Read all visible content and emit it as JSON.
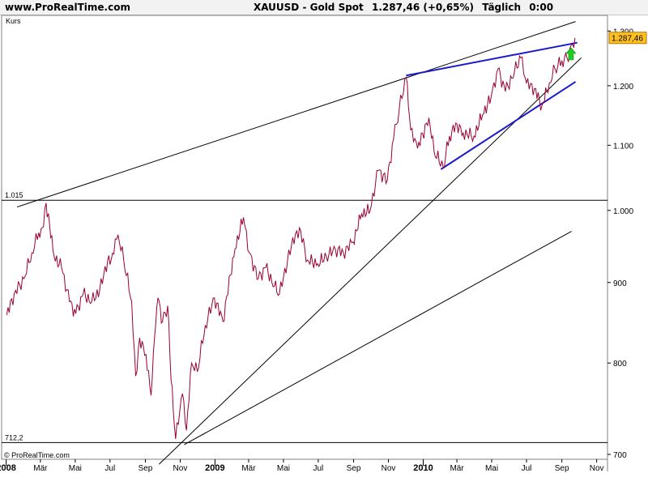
{
  "header": {
    "site": "www.ProRealTime.com",
    "instrument": "XAUUSD - Gold Spot",
    "quote": "1.287,46 (+0,65%)",
    "period": "Täglich",
    "time": "0:00"
  },
  "chart_data": {
    "type": "line",
    "title": "XAUUSD - Gold Spot",
    "ylabel": "Kurs",
    "xlabel": "",
    "y_scale": "log",
    "ylim": [
      695,
      1330
    ],
    "xlim": [
      "2007-12-24",
      "2010-11-20"
    ],
    "grid": false,
    "price_label": "1.287,46",
    "credit": "© ProRealTime.com",
    "y_ticks": [
      {
        "value": 700,
        "label": "700"
      },
      {
        "value": 800,
        "label": "800"
      },
      {
        "value": 900,
        "label": "900"
      },
      {
        "value": 1000,
        "label": "1.000"
      },
      {
        "value": 1100,
        "label": "1.100"
      },
      {
        "value": 1200,
        "label": "1.200"
      },
      {
        "value": 1300,
        "label": "1.300"
      }
    ],
    "x_ticks": [
      {
        "date": "2008-01-01",
        "label": "2008",
        "major": true
      },
      {
        "date": "2008-03-01",
        "label": "Mär",
        "major": false
      },
      {
        "date": "2008-05-01",
        "label": "Mai",
        "major": false
      },
      {
        "date": "2008-07-01",
        "label": "Jul",
        "major": false
      },
      {
        "date": "2008-09-01",
        "label": "Sep",
        "major": false
      },
      {
        "date": "2008-11-01",
        "label": "Nov",
        "major": false
      },
      {
        "date": "2009-01-01",
        "label": "2009",
        "major": true
      },
      {
        "date": "2009-03-01",
        "label": "Mär",
        "major": false
      },
      {
        "date": "2009-05-01",
        "label": "Mai",
        "major": false
      },
      {
        "date": "2009-07-01",
        "label": "Jul",
        "major": false
      },
      {
        "date": "2009-09-01",
        "label": "Sep",
        "major": false
      },
      {
        "date": "2009-11-01",
        "label": "Nov",
        "major": false
      },
      {
        "date": "2010-01-01",
        "label": "2010",
        "major": true
      },
      {
        "date": "2010-03-01",
        "label": "Mär",
        "major": false
      },
      {
        "date": "2010-05-01",
        "label": "Mai",
        "major": false
      },
      {
        "date": "2010-07-01",
        "label": "Jul",
        "major": false
      },
      {
        "date": "2010-09-01",
        "label": "Sep",
        "major": false
      },
      {
        "date": "2010-11-01",
        "label": "Nov",
        "major": false
      }
    ],
    "horizontal_levels": [
      {
        "value": 1015,
        "label": "1.015"
      },
      {
        "value": 712.2,
        "label": "712,2"
      }
    ],
    "series": [
      {
        "color": "#9a0030",
        "x": [
          "2008-01-02",
          "2008-01-15",
          "2008-02-01",
          "2008-02-15",
          "2008-02-27",
          "2008-03-04",
          "2008-03-11",
          "2008-03-17",
          "2008-03-25",
          "2008-04-07",
          "2008-04-21",
          "2008-05-02",
          "2008-05-15",
          "2008-05-30",
          "2008-06-13",
          "2008-06-27",
          "2008-07-03",
          "2008-07-15",
          "2008-07-25",
          "2008-08-08",
          "2008-08-15",
          "2008-08-22",
          "2008-09-02",
          "2008-09-11",
          "2008-09-17",
          "2008-09-23",
          "2008-10-01",
          "2008-10-10",
          "2008-10-16",
          "2008-10-24",
          "2008-11-05",
          "2008-11-12",
          "2008-11-21",
          "2008-12-01",
          "2008-12-15",
          "2008-12-31",
          "2009-01-15",
          "2009-01-28",
          "2009-02-05",
          "2009-02-20",
          "2009-03-02",
          "2009-03-18",
          "2009-03-31",
          "2009-04-15",
          "2009-04-24",
          "2009-05-15",
          "2009-05-29",
          "2009-06-12",
          "2009-06-30",
          "2009-07-15",
          "2009-07-31",
          "2009-08-14",
          "2009-08-31",
          "2009-09-15",
          "2009-09-30",
          "2009-10-14",
          "2009-10-30",
          "2009-11-10",
          "2009-11-20",
          "2009-12-02",
          "2009-12-10",
          "2009-12-22",
          "2010-01-11",
          "2010-01-20",
          "2010-02-05",
          "2010-02-16",
          "2010-03-01",
          "2010-03-12",
          "2010-03-31",
          "2010-04-15",
          "2010-04-30",
          "2010-05-12",
          "2010-05-25",
          "2010-06-10",
          "2010-06-21",
          "2010-07-01",
          "2010-07-15",
          "2010-07-28",
          "2010-08-10",
          "2010-08-20",
          "2010-09-01",
          "2010-09-10",
          "2010-09-20",
          "2010-09-24"
        ],
        "y": [
          858,
          885,
          905,
          940,
          968,
          975,
          1011,
          980,
          935,
          920,
          875,
          860,
          885,
          875,
          890,
          930,
          930,
          965,
          930,
          875,
          785,
          830,
          810,
          763,
          830,
          880,
          850,
          870,
          780,
          716,
          765,
          725,
          800,
          790,
          845,
          880,
          850,
          910,
          945,
          990,
          940,
          905,
          920,
          895,
          885,
          950,
          975,
          930,
          925,
          935,
          945,
          940,
          955,
          995,
          1000,
          1060,
          1045,
          1110,
          1160,
          1215,
          1125,
          1095,
          1145,
          1090,
          1065,
          1115,
          1135,
          1120,
          1115,
          1150,
          1180,
          1230,
          1190,
          1225,
          1250,
          1205,
          1195,
          1165,
          1205,
          1230,
          1245,
          1250,
          1275,
          1287
        ]
      }
    ],
    "trendlines": [
      {
        "color": "#000000",
        "width": 1,
        "from": {
          "date": "2008-01-20",
          "value": 1005
        },
        "to": {
          "date": "2010-09-25",
          "value": 1318
        }
      },
      {
        "color": "#000000",
        "width": 1,
        "from": {
          "date": "2008-09-25",
          "value": 690
        },
        "to": {
          "date": "2010-10-05",
          "value": 1250
        }
      },
      {
        "color": "#000000",
        "width": 1,
        "from": {
          "date": "2008-11-08",
          "value": 710
        },
        "to": {
          "date": "2010-09-18",
          "value": 970
        }
      },
      {
        "color": "#1a1acc",
        "width": 2,
        "from": {
          "date": "2009-12-02",
          "value": 1218
        },
        "to": {
          "date": "2010-09-28",
          "value": 1278
        }
      },
      {
        "color": "#1a1acc",
        "width": 2,
        "from": {
          "date": "2010-02-01",
          "value": 1062
        },
        "to": {
          "date": "2010-09-25",
          "value": 1207
        }
      }
    ],
    "annotations": [
      {
        "type": "arrow-up",
        "color": "#22cc22",
        "date": "2010-09-17",
        "value": 1255
      }
    ]
  }
}
